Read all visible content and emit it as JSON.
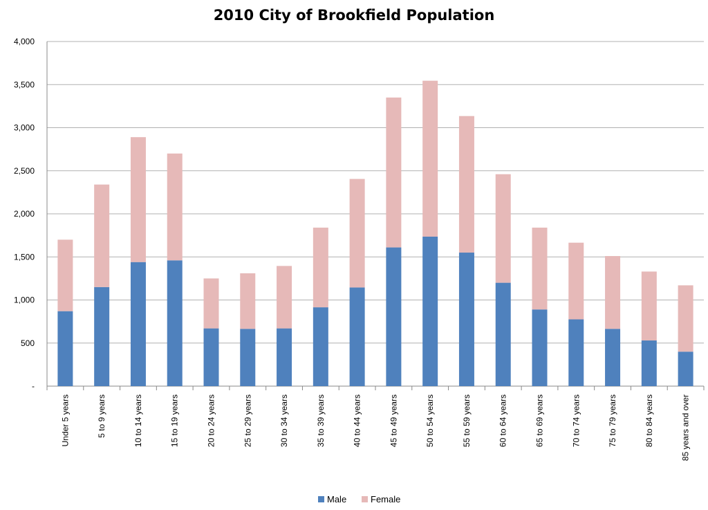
{
  "chart_data": {
    "type": "bar",
    "stacked": true,
    "title": "2010 City of Brookfield Population",
    "xlabel": "",
    "ylabel": "",
    "ylim": [
      0,
      4000
    ],
    "yticks": [
      0,
      500,
      1000,
      1500,
      2000,
      2500,
      3000,
      3500,
      4000
    ],
    "ytick_labels": [
      "-",
      "500",
      "1,000",
      "1,500",
      "2,000",
      "2,500",
      "3,000",
      "3,500",
      "4,000"
    ],
    "grid": true,
    "legend_position": "bottom",
    "categories": [
      "Under 5 years",
      "5 to 9 years",
      "10 to 14 years",
      "15 to 19 years",
      "20 to 24 years",
      "25 to 29 years",
      "30 to 34 years",
      "35 to 39 years",
      "40 to 44 years",
      "45 to 49 years",
      "50 to 54 years",
      "55 to 59 years",
      "60 to 64 years",
      "65 to 69 years",
      "70 to 74 years",
      "75 to 79 years",
      "80 to 84 years",
      "85 years and over"
    ],
    "series": [
      {
        "name": "Male",
        "color": "#4f81bd",
        "values": [
          870,
          1150,
          1440,
          1460,
          670,
          665,
          670,
          915,
          1145,
          1610,
          1735,
          1550,
          1200,
          890,
          775,
          665,
          530,
          400
        ]
      },
      {
        "name": "Female",
        "color": "#e6b9b8",
        "values": [
          830,
          1190,
          1450,
          1240,
          580,
          645,
          725,
          925,
          1260,
          1740,
          1810,
          1585,
          1260,
          950,
          890,
          845,
          800,
          770
        ]
      }
    ]
  }
}
